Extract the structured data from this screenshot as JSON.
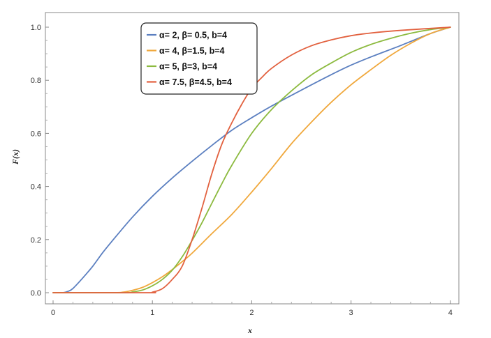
{
  "chart_data": {
    "type": "line",
    "xlabel": "x",
    "ylabel": "F(x)",
    "xlim": [
      0,
      4.1
    ],
    "ylim": [
      0,
      1.05
    ],
    "x_ticks": [
      0,
      1,
      2,
      3,
      4
    ],
    "y_ticks": [
      0.0,
      0.2,
      0.4,
      0.6,
      0.8,
      1.0
    ],
    "x_tick_labels": [
      "0",
      "1",
      "2",
      "3",
      "4"
    ],
    "y_tick_labels": [
      "0.0",
      "0.2",
      "0.4",
      "0.6",
      "0.8",
      "1.0"
    ],
    "legend_position": "top-center",
    "grid": false,
    "series": [
      {
        "name": "α= 2, β= 0.5, b=4",
        "color": "#5B7FC0",
        "x": [
          0,
          0.1,
          0.15,
          0.2,
          0.3,
          0.4,
          0.5,
          0.6,
          0.8,
          1.0,
          1.2,
          1.4,
          1.6,
          1.8,
          2.0,
          2.2,
          2.5,
          2.8,
          3.0,
          3.2,
          3.5,
          3.8,
          4.0
        ],
        "y": [
          0,
          0,
          0.005,
          0.016,
          0.056,
          0.1,
          0.151,
          0.197,
          0.285,
          0.363,
          0.432,
          0.495,
          0.555,
          0.612,
          0.659,
          0.703,
          0.763,
          0.821,
          0.857,
          0.888,
          0.931,
          0.976,
          1.0
        ]
      },
      {
        "name": "α= 4, β=1.5, b=4",
        "color": "#F0A83C",
        "x": [
          0,
          0.6,
          0.7,
          0.8,
          0.9,
          1.0,
          1.1,
          1.2,
          1.3,
          1.4,
          1.6,
          1.8,
          2.0,
          2.2,
          2.4,
          2.6,
          2.8,
          3.0,
          3.2,
          3.4,
          3.6,
          3.8,
          4.0
        ],
        "y": [
          0,
          0,
          0.002,
          0.009,
          0.02,
          0.038,
          0.06,
          0.087,
          0.117,
          0.149,
          0.223,
          0.295,
          0.379,
          0.468,
          0.561,
          0.642,
          0.717,
          0.783,
          0.84,
          0.894,
          0.939,
          0.976,
          1.0
        ]
      },
      {
        "name": "α= 5, β=3, b=4",
        "color": "#8CBA3F",
        "x": [
          0,
          0.7,
          0.8,
          0.9,
          1.0,
          1.1,
          1.2,
          1.3,
          1.4,
          1.5,
          1.6,
          1.7,
          1.8,
          2.0,
          2.2,
          2.4,
          2.6,
          2.8,
          3.0,
          3.2,
          3.4,
          3.6,
          3.8,
          4.0
        ],
        "y": [
          0,
          0,
          0.003,
          0.01,
          0.026,
          0.05,
          0.085,
          0.135,
          0.197,
          0.264,
          0.338,
          0.411,
          0.48,
          0.6,
          0.69,
          0.76,
          0.82,
          0.865,
          0.905,
          0.935,
          0.958,
          0.977,
          0.991,
          1.0
        ]
      },
      {
        "name": "α= 7.5, β=4.5, b=4",
        "color": "#E2613F",
        "x": [
          0,
          0.95,
          1.0,
          1.1,
          1.2,
          1.3,
          1.4,
          1.5,
          1.6,
          1.7,
          1.8,
          1.9,
          2.0,
          2.1,
          2.2,
          2.4,
          2.6,
          2.8,
          3.0,
          3.2,
          3.5,
          4.0
        ],
        "y": [
          0,
          0,
          0.002,
          0.015,
          0.05,
          0.1,
          0.2,
          0.32,
          0.45,
          0.56,
          0.64,
          0.71,
          0.77,
          0.81,
          0.845,
          0.895,
          0.93,
          0.952,
          0.968,
          0.978,
          0.988,
          1.0
        ]
      }
    ]
  }
}
